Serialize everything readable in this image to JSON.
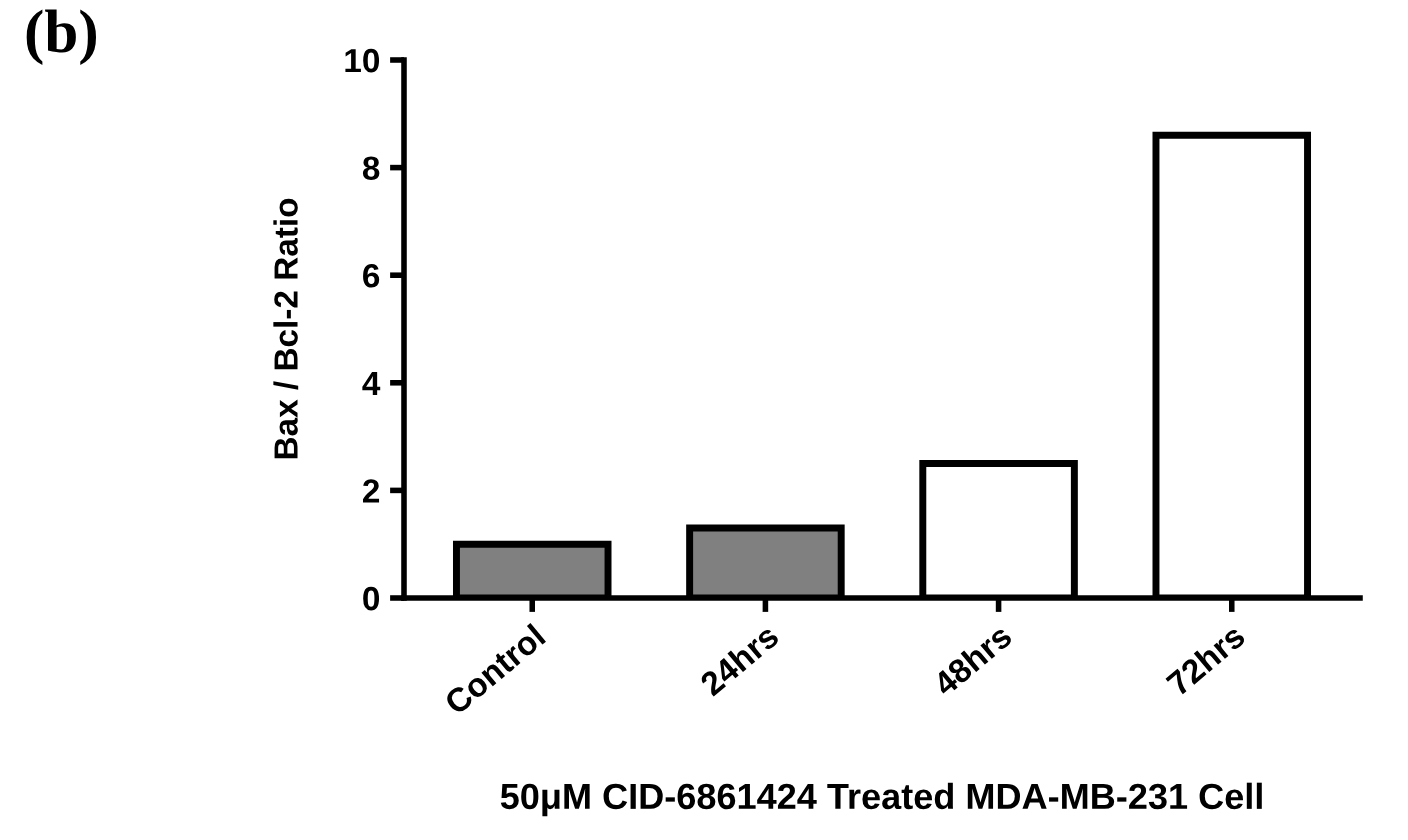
{
  "chart_data": {
    "type": "bar",
    "categories": [
      "Control",
      "24hrs",
      "48hrs",
      "72hrs"
    ],
    "values": [
      1.0,
      1.3,
      2.5,
      8.6
    ],
    "colors": [
      "#808080",
      "#808080",
      "#ffffff",
      "#ffffff"
    ],
    "ylabel": "Bax / Bcl-2 Ratio",
    "xlabel": "50μM CID-6861424 Treated MDA-MB-231 Cell",
    "ylim": [
      0,
      10
    ],
    "yticks": [
      0,
      2,
      4,
      6,
      8,
      10
    ],
    "grid": false,
    "legend": false,
    "annotations": [
      "(b)"
    ]
  }
}
